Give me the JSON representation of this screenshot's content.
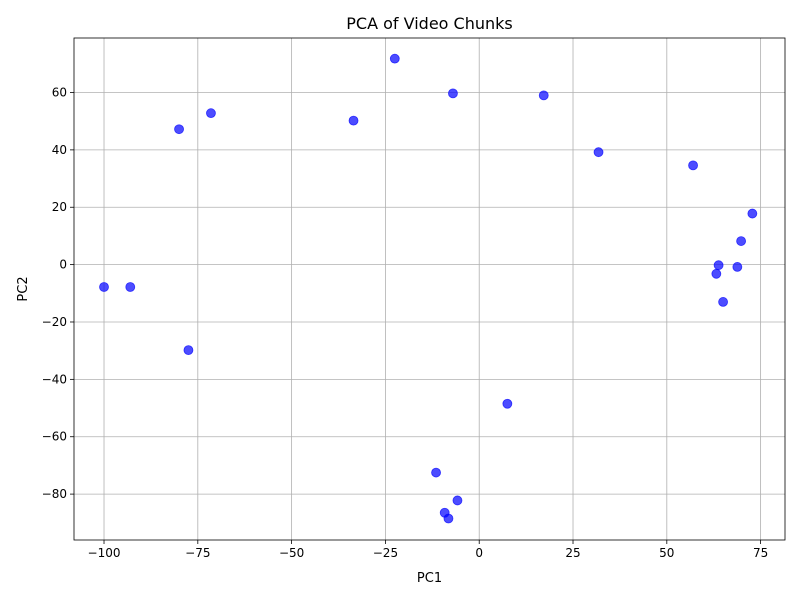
{
  "chart_data": {
    "type": "scatter",
    "title": "PCA of Video Chunks",
    "xlabel": "PC1",
    "ylabel": "PC2",
    "xlim": [
      -108,
      81.5
    ],
    "ylim": [
      -96,
      79
    ],
    "xticks": [
      -100,
      -75,
      -50,
      -25,
      0,
      25,
      50,
      75
    ],
    "xtick_labels": [
      "−100",
      "−75",
      "−50",
      "−25",
      "0",
      "25",
      "50",
      "75"
    ],
    "yticks": [
      -80,
      -60,
      -40,
      -20,
      0,
      20,
      40,
      60
    ],
    "ytick_labels": [
      "−80",
      "−60",
      "−40",
      "−20",
      "0",
      "20",
      "40",
      "60"
    ],
    "grid": true,
    "marker_color": "#0000ff",
    "marker_alpha": 0.7,
    "points": [
      {
        "x": -22.5,
        "y": 71.8
      },
      {
        "x": -7.0,
        "y": 59.7
      },
      {
        "x": 17.2,
        "y": 59.0
      },
      {
        "x": -71.5,
        "y": 52.8
      },
      {
        "x": -33.5,
        "y": 50.2
      },
      {
        "x": -80.0,
        "y": 47.2
      },
      {
        "x": 31.8,
        "y": 39.2
      },
      {
        "x": 57.0,
        "y": 34.6
      },
      {
        "x": 72.8,
        "y": 17.8
      },
      {
        "x": 69.8,
        "y": 8.2
      },
      {
        "x": 63.8,
        "y": -0.2
      },
      {
        "x": 68.8,
        "y": -0.8
      },
      {
        "x": 63.2,
        "y": -3.2
      },
      {
        "x": 65.0,
        "y": -13.0
      },
      {
        "x": -100.0,
        "y": -7.8
      },
      {
        "x": -93.0,
        "y": -7.8
      },
      {
        "x": -77.5,
        "y": -29.8
      },
      {
        "x": 7.5,
        "y": -48.5
      },
      {
        "x": -11.5,
        "y": -72.5
      },
      {
        "x": -5.8,
        "y": -82.2
      },
      {
        "x": -9.2,
        "y": -86.5
      },
      {
        "x": -8.2,
        "y": -88.5
      }
    ]
  }
}
